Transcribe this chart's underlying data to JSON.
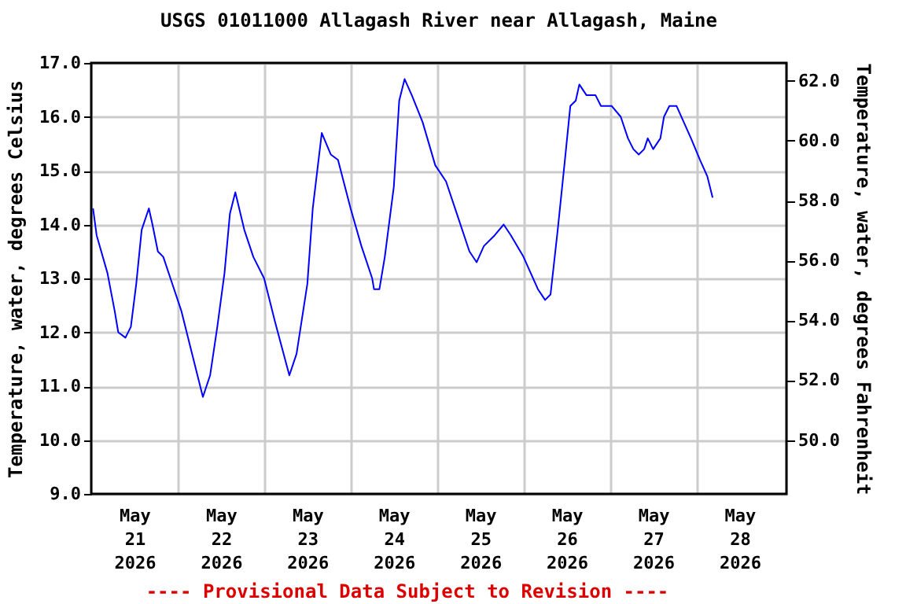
{
  "chart_data": {
    "type": "line",
    "title": "USGS 01011000 Allagash River near Allagash, Maine",
    "ylabel": "Temperature, water, degrees Celsius",
    "y2label": "Temperature, water, degrees Fahrenheit",
    "annotations": [
      "---- Provisional Data Subject to Revision ----"
    ],
    "grid": true,
    "line_style": "solid",
    "marker": "none",
    "xlim": [
      "2026-05-20T12:00",
      "2026-05-28T13:00"
    ],
    "xticks": [
      {
        "value": "2026-05-21T00:00",
        "label": "May 21 2026"
      },
      {
        "value": "2026-05-21T12:00",
        "label": null
      },
      {
        "value": "2026-05-22T00:00",
        "label": "May 22 2026"
      },
      {
        "value": "2026-05-22T12:00",
        "label": null
      },
      {
        "value": "2026-05-23T00:00",
        "label": "May 23 2026"
      },
      {
        "value": "2026-05-23T12:00",
        "label": null
      },
      {
        "value": "2026-05-24T00:00",
        "label": "May 24 2026"
      },
      {
        "value": "2026-05-24T12:00",
        "label": null
      },
      {
        "value": "2026-05-25T00:00",
        "label": "May 25 2026"
      },
      {
        "value": "2026-05-25T12:00",
        "label": null
      },
      {
        "value": "2026-05-26T00:00",
        "label": "May 26 2026"
      },
      {
        "value": "2026-05-26T12:00",
        "label": null
      },
      {
        "value": "2026-05-27T00:00",
        "label": "May 27 2026"
      },
      {
        "value": "2026-05-27T12:00",
        "label": null
      },
      {
        "value": "2026-05-28T00:00",
        "label": "May 28 2026"
      }
    ],
    "ylim": [
      9,
      17
    ],
    "yticks": [
      {
        "value": 9,
        "label": "9.0"
      },
      {
        "value": 10,
        "label": "10.0"
      },
      {
        "value": 11,
        "label": "11.0"
      },
      {
        "value": 12,
        "label": "12.0"
      },
      {
        "value": 13,
        "label": "13.0"
      },
      {
        "value": 14,
        "label": "14.0"
      },
      {
        "value": 15,
        "label": "15.0"
      },
      {
        "value": 16,
        "label": "16.0"
      },
      {
        "value": 17,
        "label": "17.0"
      }
    ],
    "y2lim": [
      48.2,
      62.6
    ],
    "y2ticks": [
      {
        "value": 50,
        "label": "50.0"
      },
      {
        "value": 52,
        "label": "52.0"
      },
      {
        "value": 54,
        "label": "54.0"
      },
      {
        "value": 56,
        "label": "56.0"
      },
      {
        "value": 58,
        "label": "58.0"
      },
      {
        "value": 60,
        "label": "60.0"
      },
      {
        "value": 62,
        "label": "62.0"
      }
    ],
    "series": [
      {
        "color": "#0000ff",
        "x": [
          "2026-05-20T12:30",
          "2026-05-20T13:30",
          "2026-05-20T16:30",
          "2026-05-20T18:30",
          "2026-05-20T19:30",
          "2026-05-20T21:30",
          "2026-05-20T23:00",
          "2026-05-21T00:30",
          "2026-05-21T02:00",
          "2026-05-21T04:00",
          "2026-05-21T05:00",
          "2026-05-21T06:30",
          "2026-05-21T08:00",
          "2026-05-21T10:00",
          "2026-05-21T13:00",
          "2026-05-21T16:00",
          "2026-05-21T19:00",
          "2026-05-21T21:00",
          "2026-05-21T23:00",
          "2026-05-22T01:00",
          "2026-05-22T02:30",
          "2026-05-22T04:00",
          "2026-05-22T06:30",
          "2026-05-22T09:00",
          "2026-05-22T12:00",
          "2026-05-22T15:00",
          "2026-05-22T19:00",
          "2026-05-22T21:00",
          "2026-05-23T00:00",
          "2026-05-23T01:30",
          "2026-05-23T04:00",
          "2026-05-23T06:30",
          "2026-05-23T08:30",
          "2026-05-23T12:00",
          "2026-05-23T15:00",
          "2026-05-23T18:00",
          "2026-05-23T18:30",
          "2026-05-23T20:00",
          "2026-05-23T21:30",
          "2026-05-24T00:00",
          "2026-05-24T01:30",
          "2026-05-24T03:00",
          "2026-05-24T05:00",
          "2026-05-24T08:00",
          "2026-05-24T11:30",
          "2026-05-24T14:30",
          "2026-05-24T18:00",
          "2026-05-24T21:00",
          "2026-05-24T23:00",
          "2026-05-25T01:00",
          "2026-05-25T04:00",
          "2026-05-25T06:30",
          "2026-05-25T08:30",
          "2026-05-25T12:00",
          "2026-05-25T16:00",
          "2026-05-25T18:00",
          "2026-05-25T19:30",
          "2026-05-25T21:30",
          "2026-05-25T23:30",
          "2026-05-26T01:00",
          "2026-05-26T02:30",
          "2026-05-26T03:30",
          "2026-05-26T05:30",
          "2026-05-26T08:00",
          "2026-05-26T09:30",
          "2026-05-26T12:30",
          "2026-05-26T15:00",
          "2026-05-26T17:00",
          "2026-05-26T18:30",
          "2026-05-26T20:00",
          "2026-05-26T21:30",
          "2026-05-26T22:30",
          "2026-05-27T00:00",
          "2026-05-27T02:00",
          "2026-05-27T03:00",
          "2026-05-27T04:30",
          "2026-05-27T06:30",
          "2026-05-27T08:30",
          "2026-05-27T10:30",
          "2026-05-27T13:00",
          "2026-05-27T15:00",
          "2026-05-27T16:30"
        ],
        "values": [
          14.3,
          13.8,
          13.1,
          12.4,
          12.0,
          11.9,
          12.1,
          12.9,
          13.9,
          14.3,
          14.0,
          13.5,
          13.4,
          13.0,
          12.4,
          11.6,
          10.8,
          11.2,
          12.1,
          13.1,
          14.2,
          14.6,
          13.9,
          13.4,
          13.0,
          12.2,
          11.2,
          11.6,
          12.9,
          14.3,
          15.7,
          15.3,
          15.2,
          14.3,
          13.6,
          13.0,
          12.8,
          12.8,
          13.4,
          14.7,
          16.3,
          16.7,
          16.4,
          15.9,
          15.1,
          14.8,
          14.1,
          13.5,
          13.3,
          13.6,
          13.8,
          14.0,
          13.8,
          13.4,
          12.8,
          12.6,
          12.7,
          13.9,
          15.2,
          16.2,
          16.3,
          16.6,
          16.4,
          16.4,
          16.2,
          16.2,
          16.0,
          15.6,
          15.4,
          15.3,
          15.4,
          15.6,
          15.4,
          15.6,
          16.0,
          16.2,
          16.2,
          15.9,
          15.6,
          15.2,
          14.9,
          14.5
        ]
      }
    ]
  }
}
